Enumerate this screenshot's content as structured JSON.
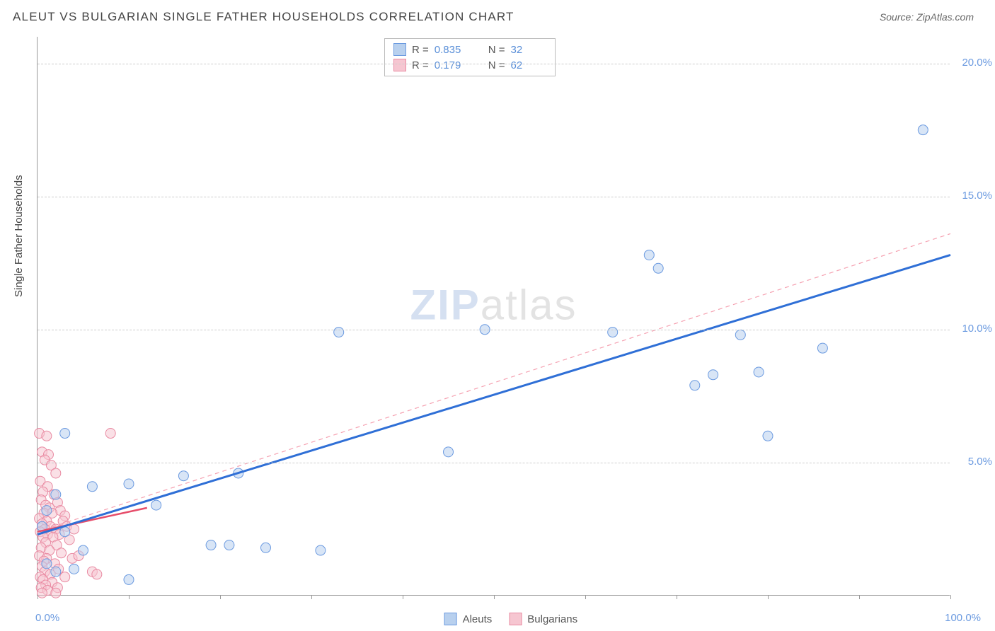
{
  "title": "ALEUT VS BULGARIAN SINGLE FATHER HOUSEHOLDS CORRELATION CHART",
  "source": "Source: ZipAtlas.com",
  "ylabel": "Single Father Households",
  "watermark_a": "ZIP",
  "watermark_b": "atlas",
  "chart": {
    "type": "scatter",
    "xlim": [
      0,
      100
    ],
    "ylim": [
      0,
      21
    ],
    "x_min_label": "0.0%",
    "x_max_label": "100.0%",
    "y_ticks": [
      5.0,
      10.0,
      15.0,
      20.0
    ],
    "y_tick_labels": [
      "5.0%",
      "10.0%",
      "15.0%",
      "20.0%"
    ],
    "x_tick_positions": [
      0,
      10,
      20,
      30,
      40,
      50,
      60,
      70,
      80,
      90,
      100
    ],
    "grid_color": "#cccccc",
    "axis_color": "#999999",
    "axis_value_color": "#6b9ae0",
    "background_color": "#ffffff",
    "marker_radius": 7,
    "marker_opacity": 0.55,
    "series": [
      {
        "name": "Aleuts",
        "color_fill": "#b8d0ee",
        "color_stroke": "#6b9ae0",
        "R": "0.835",
        "N": "32",
        "trend": {
          "x1": 0,
          "y1": 2.3,
          "x2": 100,
          "y2": 12.8,
          "stroke": "#2f6fd6",
          "width": 3,
          "dash": ""
        },
        "trend2": {
          "x1": 0,
          "y1": 2.4,
          "x2": 100,
          "y2": 13.6,
          "stroke": "#f5a0b0",
          "width": 1.2,
          "dash": "6 5"
        },
        "points": [
          [
            97,
            17.5
          ],
          [
            67,
            12.8
          ],
          [
            68,
            12.3
          ],
          [
            63,
            9.9
          ],
          [
            77,
            9.8
          ],
          [
            86,
            9.3
          ],
          [
            79,
            8.4
          ],
          [
            74,
            8.3
          ],
          [
            72,
            7.9
          ],
          [
            80,
            6.0
          ],
          [
            33,
            9.9
          ],
          [
            49,
            10.0
          ],
          [
            45,
            5.4
          ],
          [
            10,
            4.2
          ],
          [
            16,
            4.5
          ],
          [
            22,
            4.6
          ],
          [
            3,
            6.1
          ],
          [
            6,
            4.1
          ],
          [
            13,
            3.4
          ],
          [
            2,
            3.8
          ],
          [
            1,
            3.2
          ],
          [
            0.5,
            2.6
          ],
          [
            3,
            2.4
          ],
          [
            19,
            1.9
          ],
          [
            21,
            1.9
          ],
          [
            25,
            1.8
          ],
          [
            31,
            1.7
          ],
          [
            10,
            0.6
          ],
          [
            5,
            1.7
          ],
          [
            1,
            1.2
          ],
          [
            2,
            0.9
          ],
          [
            4,
            1.0
          ]
        ]
      },
      {
        "name": "Bulgarians",
        "color_fill": "#f6c6d1",
        "color_stroke": "#e98aa2",
        "R": "0.179",
        "N": "62",
        "trend": {
          "x1": 0,
          "y1": 2.4,
          "x2": 12,
          "y2": 3.3,
          "stroke": "#e64d6a",
          "width": 2.5,
          "dash": ""
        },
        "points": [
          [
            0.2,
            6.1
          ],
          [
            1.0,
            6.0
          ],
          [
            8,
            6.1
          ],
          [
            0.5,
            5.4
          ],
          [
            1.2,
            5.3
          ],
          [
            0.8,
            5.1
          ],
          [
            1.5,
            4.9
          ],
          [
            2.0,
            4.6
          ],
          [
            0.3,
            4.3
          ],
          [
            1.1,
            4.1
          ],
          [
            0.6,
            3.9
          ],
          [
            1.8,
            3.8
          ],
          [
            0.4,
            3.6
          ],
          [
            2.2,
            3.5
          ],
          [
            0.9,
            3.4
          ],
          [
            1.3,
            3.3
          ],
          [
            2.5,
            3.2
          ],
          [
            0.7,
            3.1
          ],
          [
            1.6,
            3.1
          ],
          [
            3.0,
            3.0
          ],
          [
            0.2,
            2.9
          ],
          [
            1.0,
            2.8
          ],
          [
            2.8,
            2.8
          ],
          [
            0.5,
            2.7
          ],
          [
            1.4,
            2.6
          ],
          [
            3.2,
            2.6
          ],
          [
            0.8,
            2.5
          ],
          [
            2.0,
            2.5
          ],
          [
            4.0,
            2.5
          ],
          [
            0.3,
            2.4
          ],
          [
            1.1,
            2.3
          ],
          [
            2.4,
            2.3
          ],
          [
            0.6,
            2.2
          ],
          [
            1.7,
            2.2
          ],
          [
            3.5,
            2.1
          ],
          [
            0.9,
            2.0
          ],
          [
            2.1,
            1.9
          ],
          [
            0.4,
            1.8
          ],
          [
            1.3,
            1.7
          ],
          [
            2.6,
            1.6
          ],
          [
            0.2,
            1.5
          ],
          [
            1.0,
            1.4
          ],
          [
            3.8,
            1.4
          ],
          [
            0.7,
            1.3
          ],
          [
            1.9,
            1.2
          ],
          [
            0.5,
            1.1
          ],
          [
            2.3,
            1.0
          ],
          [
            0.8,
            0.9
          ],
          [
            6.0,
            0.9
          ],
          [
            1.4,
            0.8
          ],
          [
            0.3,
            0.7
          ],
          [
            3.0,
            0.7
          ],
          [
            0.6,
            0.6
          ],
          [
            1.6,
            0.5
          ],
          [
            6.5,
            0.8
          ],
          [
            0.9,
            0.4
          ],
          [
            2.2,
            0.3
          ],
          [
            0.4,
            0.3
          ],
          [
            4.5,
            1.5
          ],
          [
            1.1,
            0.2
          ],
          [
            0.5,
            0.1
          ],
          [
            2.0,
            0.1
          ]
        ]
      }
    ]
  },
  "stats_labels": {
    "R": "R =",
    "N": "N ="
  },
  "legend": {
    "a": "Aleuts",
    "b": "Bulgarians"
  }
}
